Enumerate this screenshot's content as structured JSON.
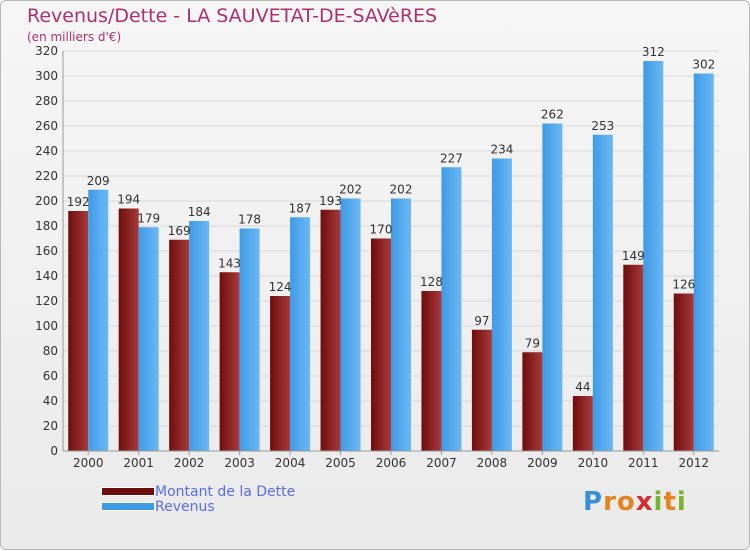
{
  "header": {
    "title": "Revenus/Dette - LA SAUVETAT-DE-SAVèRES",
    "subtitle": "(en milliers d'€)"
  },
  "legend": {
    "debt_label": "Montant de la Dette",
    "revenue_label": "Revenus"
  },
  "logo": {
    "text": "Proxiti",
    "letters": [
      "P",
      "r",
      "o",
      "x",
      "i",
      "t",
      "i"
    ],
    "colors": [
      "#3a8fd8",
      "#e8821f",
      "#e8821f",
      "#d92d2d",
      "#7ab32e",
      "#e8821f",
      "#7ab32e"
    ]
  },
  "colors": {
    "debt": "#6e0d0d",
    "debt_light": "#a83a3a",
    "revenue": "#3f9ae6",
    "revenue_light": "#6bb8f3",
    "grid": "#d8d8d8",
    "axis_text": "#333333"
  },
  "chart_data": {
    "type": "bar",
    "categories": [
      "2000",
      "2001",
      "2002",
      "2003",
      "2004",
      "2005",
      "2006",
      "2007",
      "2008",
      "2009",
      "2010",
      "2011",
      "2012"
    ],
    "series": [
      {
        "name": "Montant de la Dette",
        "values": [
          192,
          194,
          169,
          143,
          124,
          193,
          170,
          128,
          97,
          79,
          44,
          149,
          126
        ]
      },
      {
        "name": "Revenus",
        "values": [
          209,
          179,
          184,
          178,
          187,
          202,
          202,
          227,
          234,
          262,
          253,
          312,
          302
        ]
      }
    ],
    "ylim": [
      0,
      320
    ],
    "yticks": [
      0,
      20,
      40,
      60,
      80,
      100,
      120,
      140,
      160,
      180,
      200,
      220,
      240,
      260,
      280,
      300,
      320
    ],
    "grid": true,
    "legend_position": "bottom-left"
  }
}
